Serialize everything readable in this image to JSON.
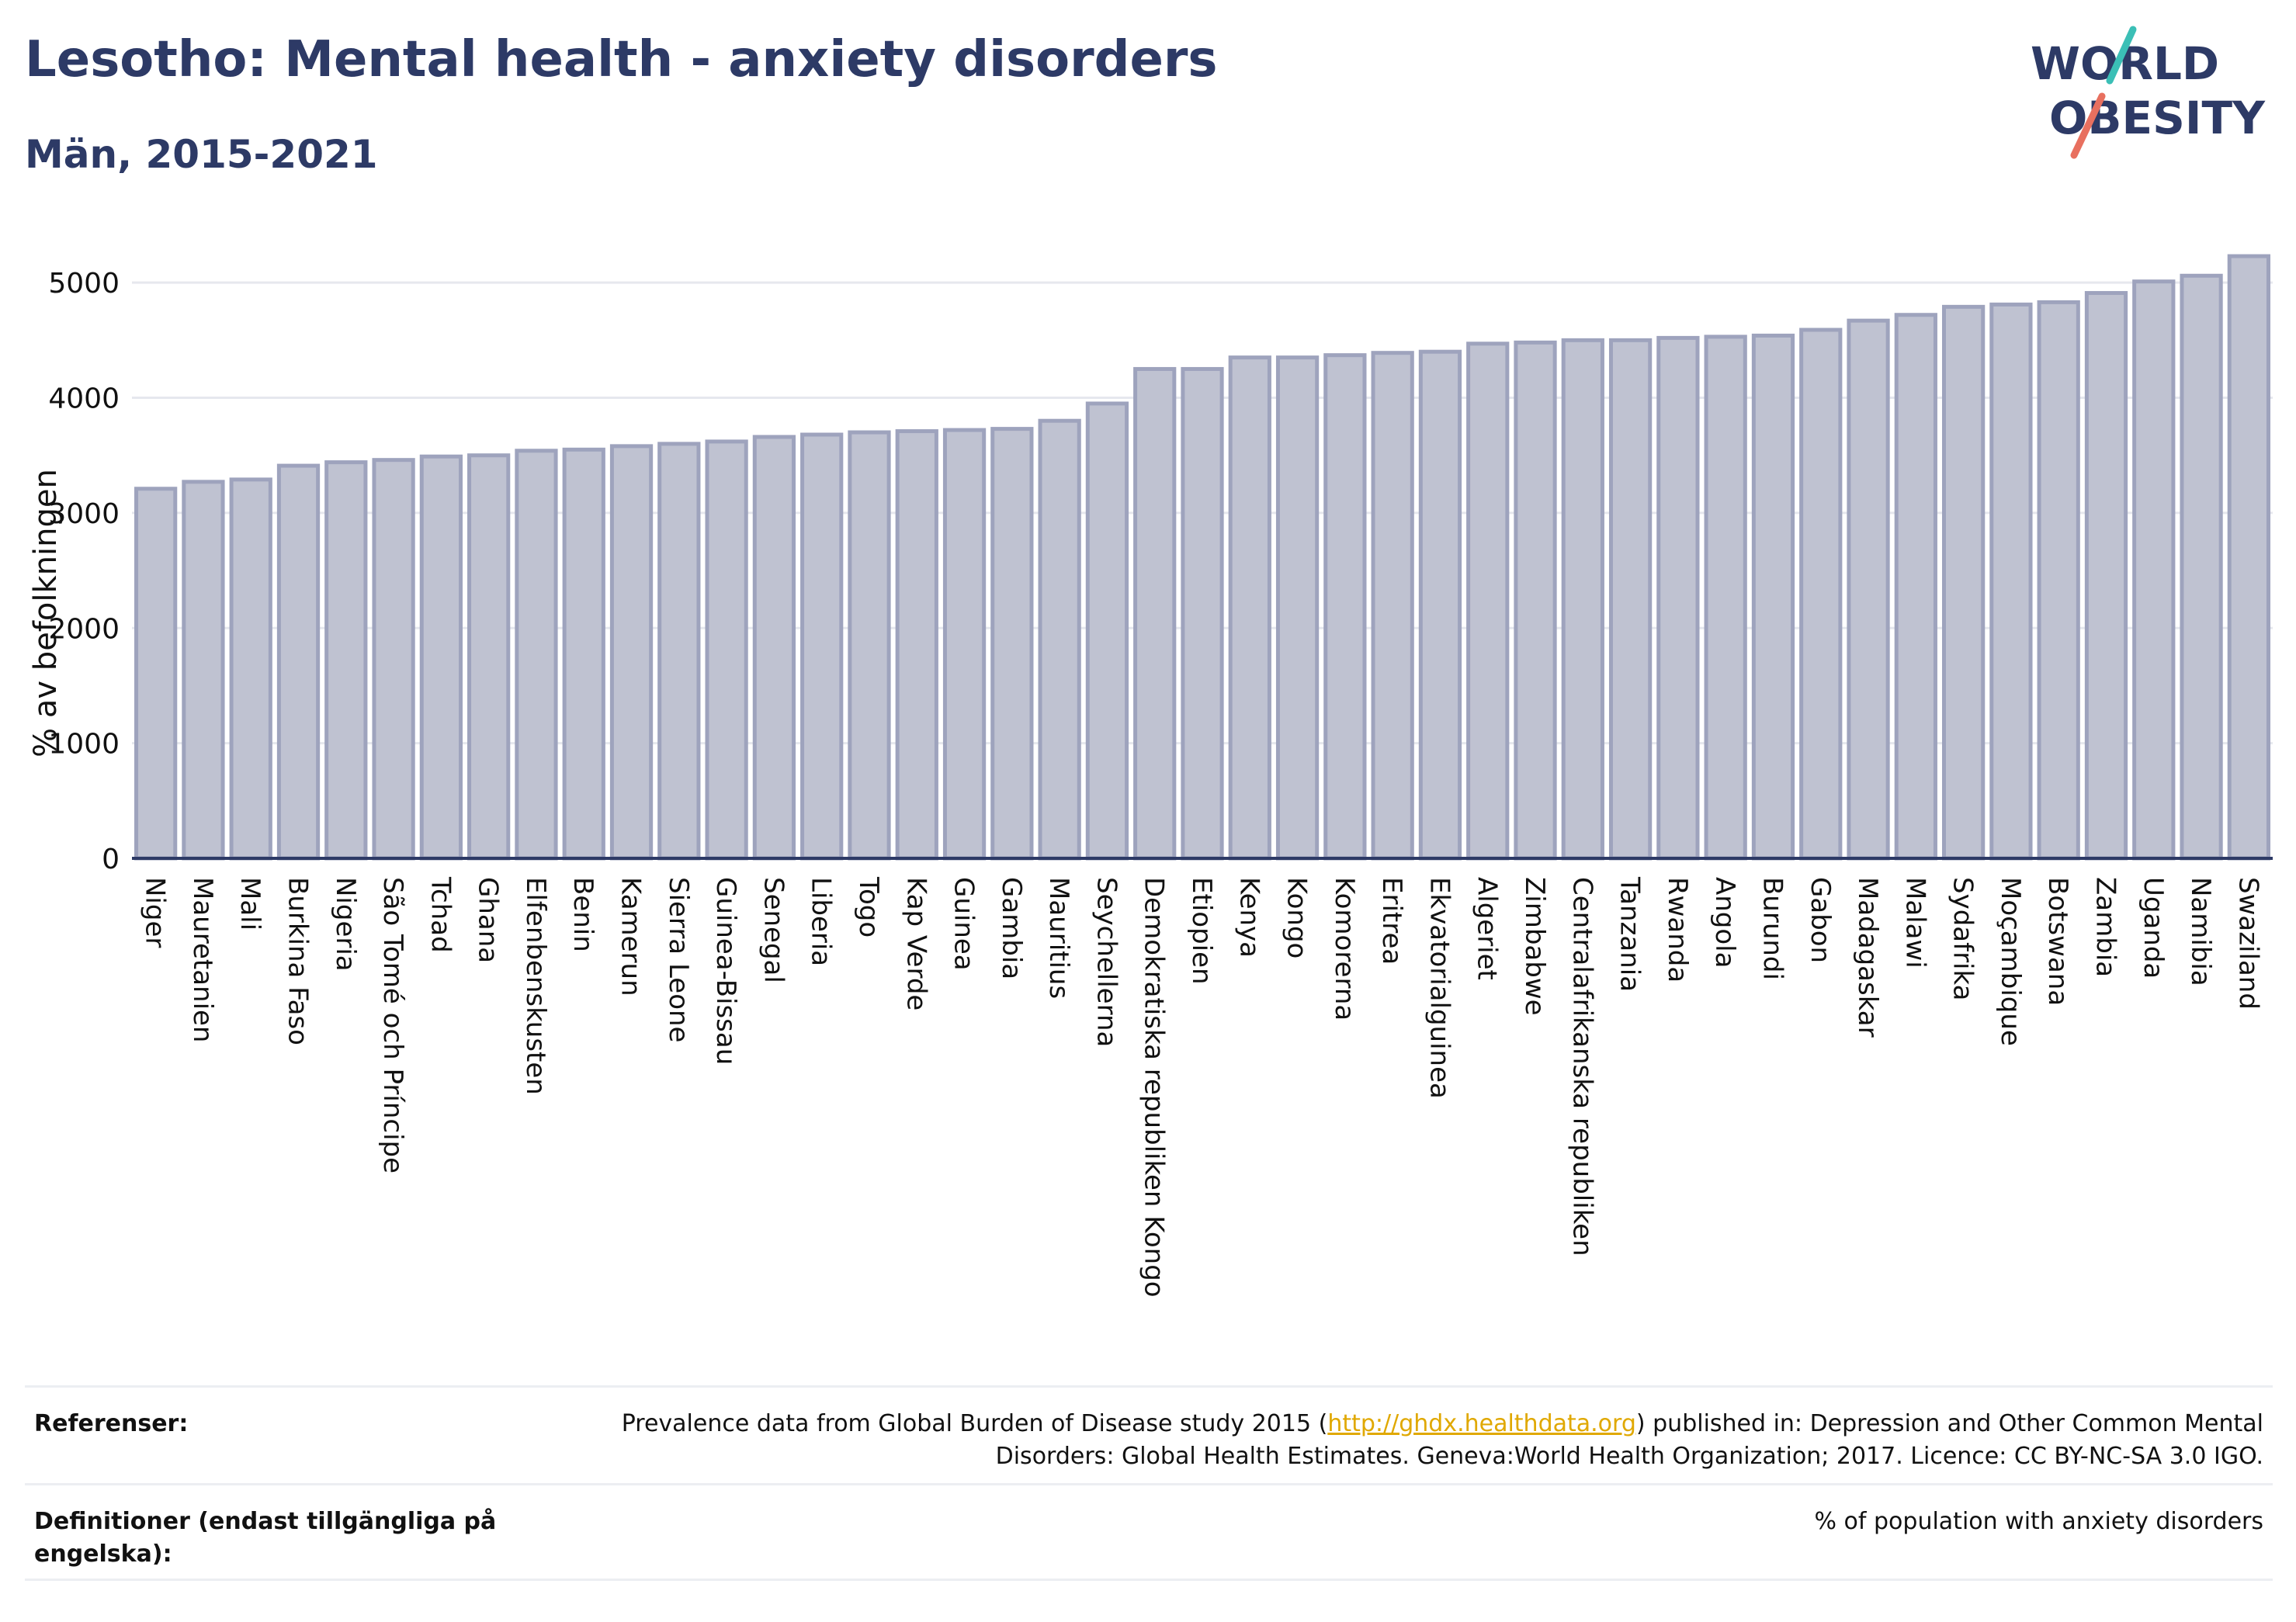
{
  "header": {
    "title": "Lesotho: Mental health - anxiety disorders",
    "subtitle": "Män, 2015-2021"
  },
  "logo": {
    "line1": "WORLD",
    "line2": "OBESITY",
    "accent_colors": [
      "#3bbfb6",
      "#e8705f"
    ]
  },
  "chart_data": {
    "type": "bar",
    "title": "",
    "xlabel": "",
    "ylabel": "% av befolkningen",
    "ylim": [
      0,
      5500
    ],
    "yticks": [
      0,
      1000,
      2000,
      3000,
      4000,
      5000
    ],
    "grid": true,
    "bar_fill": "#bfc2d1",
    "bar_stroke": "#9ea3bd",
    "categories": [
      "Niger",
      "Mauretanien",
      "Mali",
      "Burkina Faso",
      "Nigeria",
      "São Tomé och Príncipe",
      "Tchad",
      "Ghana",
      "Elfenbenskusten",
      "Benin",
      "Kamerun",
      "Sierra Leone",
      "Guinea-Bissau",
      "Senegal",
      "Liberia",
      "Togo",
      "Kap Verde",
      "Guinea",
      "Gambia",
      "Mauritius",
      "Seychellerna",
      "Demokratiska republiken Kongo",
      "Etiopien",
      "Kenya",
      "Kongo",
      "Komorerna",
      "Eritrea",
      "Ekvatorialguinea",
      "Algeriet",
      "Zimbabwe",
      "Centralafrikanska republiken",
      "Tanzania",
      "Rwanda",
      "Angola",
      "Burundi",
      "Gabon",
      "Madagaskar",
      "Malawi",
      "Sydafrika",
      "Moçambique",
      "Botswana",
      "Zambia",
      "Uganda",
      "Namibia",
      "Swaziland"
    ],
    "values": [
      3210,
      3270,
      3290,
      3410,
      3440,
      3460,
      3490,
      3500,
      3540,
      3550,
      3580,
      3600,
      3620,
      3660,
      3680,
      3700,
      3710,
      3720,
      3730,
      3800,
      3950,
      4250,
      4250,
      4350,
      4350,
      4370,
      4390,
      4400,
      4470,
      4480,
      4500,
      4500,
      4520,
      4530,
      4540,
      4590,
      4670,
      4720,
      4790,
      4810,
      4830,
      4910,
      5010,
      5060,
      5230
    ]
  },
  "references": {
    "label": "Referenser:",
    "text_before": "Prevalence data from Global Burden of Disease study 2015 (",
    "link": "http://ghdx.healthdata.org",
    "text_after": ") published in: Depression and Other Common Mental Disorders: Global Health Estimates. Geneva:World Health Organization; 2017. Licence: CC BY-NC-SA 3.0 IGO."
  },
  "definitions": {
    "label": "Definitioner (endast tillgängliga på engelska):",
    "text": "% of population with anxiety disorders"
  }
}
